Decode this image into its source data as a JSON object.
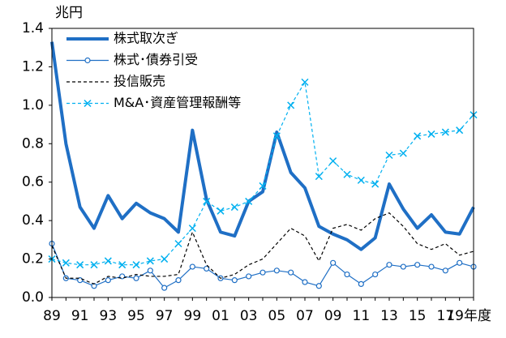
{
  "chart_data": {
    "type": "line",
    "y_label": "兆円",
    "x_label": "年度",
    "categories": [
      "89",
      null,
      "91",
      null,
      "93",
      null,
      "95",
      null,
      "97",
      null,
      "99",
      null,
      "01",
      null,
      "03",
      null,
      "05",
      null,
      "07",
      null,
      "09",
      null,
      "11",
      null,
      "13",
      null,
      "15",
      null,
      "17",
      null,
      "19"
    ],
    "ylim": [
      0,
      1.4
    ],
    "yticks": [
      {
        "value": 0,
        "label": "0.0"
      },
      0.2,
      0.4,
      0.6,
      0.8,
      {
        "value": 1,
        "label": "1.0"
      },
      1.2,
      1.4
    ],
    "legend": "upper left",
    "series": [
      {
        "name": "株式取次ぎ",
        "color": "#1f6fc5",
        "line_width": 4,
        "dash": "none",
        "marker": "none",
        "values": [
          1.33,
          0.8,
          0.47,
          0.36,
          0.53,
          0.41,
          0.49,
          0.44,
          0.41,
          0.34,
          0.87,
          0.51,
          0.34,
          0.32,
          0.5,
          0.55,
          0.86,
          0.65,
          0.57,
          0.37,
          0.33,
          0.3,
          0.25,
          0.31,
          0.59,
          0.46,
          0.36,
          0.43,
          0.34,
          0.33,
          0.47
        ]
      },
      {
        "name": "株式･債券引受",
        "color": "#1f6fc5",
        "line_width": 1.2,
        "dash": "none",
        "marker": "circle",
        "values": [
          0.28,
          0.1,
          0.09,
          0.06,
          0.09,
          0.11,
          0.1,
          0.14,
          0.05,
          0.09,
          0.16,
          0.15,
          0.1,
          0.09,
          0.11,
          0.13,
          0.14,
          0.13,
          0.08,
          0.06,
          0.18,
          0.12,
          0.07,
          0.12,
          0.17,
          0.16,
          0.17,
          0.16,
          0.14,
          0.18,
          0.16
        ]
      },
      {
        "name": "投信販売",
        "color": "#000000",
        "line_width": 1.2,
        "dash": "4 3",
        "marker": "none",
        "values": [
          0.27,
          0.1,
          0.1,
          0.07,
          0.11,
          0.1,
          0.12,
          0.11,
          0.11,
          0.12,
          0.34,
          0.17,
          0.1,
          0.12,
          0.17,
          0.2,
          0.28,
          0.36,
          0.32,
          0.19,
          0.36,
          0.38,
          0.35,
          0.41,
          0.44,
          0.37,
          0.28,
          0.25,
          0.28,
          0.22,
          0.24
        ]
      },
      {
        "name": "M&A･資産管理報酬等",
        "color": "#00b0f0",
        "line_width": 1.2,
        "dash": "4 3",
        "marker": "x",
        "values": [
          0.2,
          0.18,
          0.17,
          0.17,
          0.19,
          0.17,
          0.17,
          0.19,
          0.2,
          0.28,
          0.36,
          0.5,
          0.45,
          0.47,
          0.5,
          0.58,
          0.84,
          1.0,
          1.12,
          0.63,
          0.71,
          0.64,
          0.61,
          0.59,
          0.74,
          0.75,
          0.84,
          0.85,
          0.86,
          0.87,
          0.95
        ]
      }
    ]
  }
}
